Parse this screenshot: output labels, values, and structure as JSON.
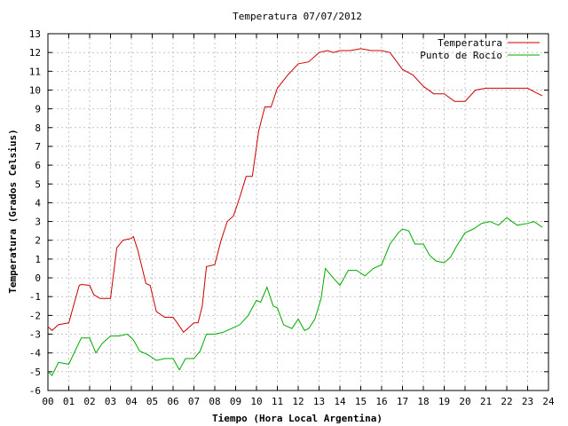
{
  "chart_data": {
    "type": "line",
    "title": "Temperatura 07/07/2012",
    "xlabel": "Tiempo (Hora Local Argentina)",
    "ylabel": "Temperatura (Grados Celsius)",
    "xlim": [
      0,
      24
    ],
    "ylim": [
      -6,
      13
    ],
    "x_ticks": [
      "00",
      "01",
      "02",
      "03",
      "04",
      "05",
      "06",
      "07",
      "08",
      "09",
      "10",
      "11",
      "12",
      "13",
      "14",
      "15",
      "16",
      "17",
      "18",
      "19",
      "20",
      "21",
      "22",
      "23",
      "24"
    ],
    "y_ticks": [
      "-6",
      "-5",
      "-4",
      "-3",
      "-2",
      "-1",
      "0",
      "1",
      "2",
      "3",
      "4",
      "5",
      "6",
      "7",
      "8",
      "9",
      "10",
      "11",
      "12",
      "13"
    ],
    "grid": true,
    "legend_position": "top-right",
    "series": [
      {
        "name": "Temperatura",
        "color": "#cc0000",
        "x": [
          0.0,
          0.2,
          0.5,
          1.0,
          1.2,
          1.5,
          1.6,
          2.0,
          2.2,
          2.5,
          3.0,
          3.3,
          3.6,
          4.0,
          4.1,
          4.3,
          4.7,
          4.9,
          5.2,
          5.6,
          6.0,
          6.2,
          6.5,
          7.0,
          7.2,
          7.4,
          7.6,
          8.0,
          8.3,
          8.6,
          8.9,
          9.2,
          9.5,
          9.8,
          10.1,
          10.4,
          10.7,
          11.0,
          11.5,
          12.0,
          12.5,
          13.0,
          13.4,
          13.7,
          14.0,
          14.5,
          15.0,
          15.5,
          16.0,
          16.4,
          17.0,
          17.5,
          18.0,
          18.5,
          19.0,
          19.5,
          20.0,
          20.5,
          21.0,
          21.5,
          22.0,
          22.5,
          23.0,
          23.5,
          23.7
        ],
        "y": [
          -2.6,
          -2.8,
          -2.5,
          -2.4,
          -1.6,
          -0.4,
          -0.35,
          -0.4,
          -0.9,
          -1.1,
          -1.1,
          1.6,
          2.0,
          2.1,
          2.2,
          1.5,
          -0.3,
          -0.4,
          -1.8,
          -2.1,
          -2.1,
          -2.4,
          -2.9,
          -2.4,
          -2.4,
          -1.5,
          0.6,
          0.7,
          2.0,
          3.0,
          3.3,
          4.3,
          5.4,
          5.4,
          7.8,
          9.1,
          9.1,
          10.1,
          10.8,
          11.4,
          11.5,
          12.0,
          12.1,
          12.0,
          12.1,
          12.1,
          12.2,
          12.1,
          12.1,
          12.0,
          11.1,
          10.8,
          10.2,
          9.8,
          9.8,
          9.4,
          9.4,
          10.0,
          10.1,
          10.1,
          10.1,
          10.1,
          10.1,
          9.8,
          9.7
        ]
      },
      {
        "name": "Punto de Rocío",
        "color": "#00aa00",
        "x": [
          0.0,
          0.2,
          0.5,
          1.0,
          1.3,
          1.6,
          2.0,
          2.3,
          2.6,
          3.0,
          3.4,
          3.8,
          4.1,
          4.4,
          4.8,
          5.2,
          5.6,
          6.0,
          6.3,
          6.6,
          7.0,
          7.3,
          7.6,
          8.0,
          8.4,
          8.8,
          9.2,
          9.6,
          10.0,
          10.2,
          10.5,
          10.8,
          11.0,
          11.3,
          11.7,
          12.0,
          12.3,
          12.5,
          12.8,
          13.1,
          13.3,
          13.6,
          14.0,
          14.4,
          14.8,
          15.2,
          15.6,
          16.0,
          16.4,
          16.8,
          17.0,
          17.3,
          17.6,
          18.0,
          18.3,
          18.6,
          19.0,
          19.3,
          19.6,
          20.0,
          20.4,
          20.8,
          21.2,
          21.6,
          22.0,
          22.5,
          23.0,
          23.3,
          23.7
        ],
        "y": [
          -5.0,
          -5.2,
          -4.5,
          -4.6,
          -3.9,
          -3.2,
          -3.2,
          -4.0,
          -3.5,
          -3.1,
          -3.1,
          -3.0,
          -3.3,
          -3.9,
          -4.1,
          -4.4,
          -4.3,
          -4.3,
          -4.9,
          -4.3,
          -4.3,
          -3.9,
          -3.0,
          -3.0,
          -2.9,
          -2.7,
          -2.5,
          -2.0,
          -1.2,
          -1.3,
          -0.5,
          -1.5,
          -1.6,
          -2.5,
          -2.7,
          -2.2,
          -2.8,
          -2.7,
          -2.2,
          -1.1,
          0.5,
          0.1,
          -0.4,
          0.4,
          0.4,
          0.1,
          0.5,
          0.7,
          1.8,
          2.4,
          2.6,
          2.5,
          1.8,
          1.8,
          1.2,
          0.9,
          0.8,
          1.1,
          1.7,
          2.4,
          2.6,
          2.9,
          3.0,
          2.8,
          3.2,
          2.8,
          2.9,
          3.0,
          2.7
        ]
      }
    ]
  }
}
